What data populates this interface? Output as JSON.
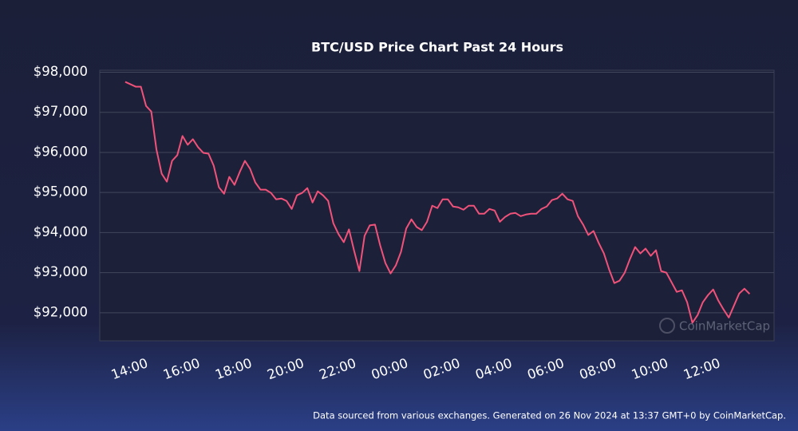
{
  "chart_data": {
    "type": "line",
    "title": "BTC/USD Price Chart Past 24 Hours",
    "watermark": "CoinMarketCap",
    "footer": "Data sourced from various exchanges. Generated on 26 Nov 2024 at 13:37 GMT+0 by CoinMarketCap.",
    "color": "#f0527a",
    "grid": true,
    "xlim": [
      12.62,
      38.54
    ],
    "ylim": [
      91300,
      98050
    ],
    "xticks": [
      {
        "value": 14,
        "label": "14:00"
      },
      {
        "value": 16,
        "label": "16:00"
      },
      {
        "value": 18,
        "label": "18:00"
      },
      {
        "value": 20,
        "label": "20:00"
      },
      {
        "value": 22,
        "label": "22:00"
      },
      {
        "value": 24,
        "label": "00:00"
      },
      {
        "value": 26,
        "label": "02:00"
      },
      {
        "value": 28,
        "label": "04:00"
      },
      {
        "value": 30,
        "label": "06:00"
      },
      {
        "value": 32,
        "label": "08:00"
      },
      {
        "value": 34,
        "label": "10:00"
      },
      {
        "value": 36,
        "label": "12:00"
      }
    ],
    "yticks": [
      {
        "value": 92000,
        "label": "$92,000"
      },
      {
        "value": 93000,
        "label": "$93,000"
      },
      {
        "value": 94000,
        "label": "$94,000"
      },
      {
        "value": 95000,
        "label": "$95,000"
      },
      {
        "value": 96000,
        "label": "$96,000"
      },
      {
        "value": 97000,
        "label": "$97,000"
      },
      {
        "value": 98000,
        "label": "$98,000"
      }
    ],
    "x": [
      13.6,
      13.8,
      14.0,
      14.2,
      14.4,
      14.6,
      14.8,
      15.0,
      15.2,
      15.4,
      15.6,
      15.8,
      16.0,
      16.2,
      16.4,
      16.6,
      16.8,
      17.0,
      17.2,
      17.4,
      17.6,
      17.8,
      18.0,
      18.2,
      18.4,
      18.6,
      18.8,
      19.0,
      19.2,
      19.4,
      19.6,
      19.8,
      20.0,
      20.2,
      20.4,
      20.6,
      20.8,
      21.0,
      21.2,
      21.4,
      21.6,
      21.8,
      22.0,
      22.2,
      22.4,
      22.6,
      22.8,
      23.0,
      23.2,
      23.4,
      23.6,
      23.8,
      24.0,
      24.2,
      24.4,
      24.6,
      24.8,
      25.0,
      25.2,
      25.4,
      25.6,
      25.8,
      26.0,
      26.2,
      26.4,
      26.6,
      26.8,
      27.0,
      27.2,
      27.4,
      27.6,
      27.8,
      28.0,
      28.2,
      28.4,
      28.6,
      28.8,
      29.0,
      29.2,
      29.4,
      29.6,
      29.8,
      30.0,
      30.2,
      30.4,
      30.6,
      30.8,
      31.0,
      31.2,
      31.4,
      31.6,
      31.8,
      32.0,
      32.2,
      32.4,
      32.6,
      32.8,
      33.0,
      33.2,
      33.4,
      33.6,
      33.8,
      34.0,
      34.2,
      34.4,
      34.6,
      34.8,
      35.0,
      35.2,
      35.4,
      35.6,
      35.8,
      36.0,
      36.2,
      36.4,
      36.6,
      36.8,
      37.0,
      37.2,
      37.4,
      37.6
    ],
    "values": [
      97760,
      97700,
      97640,
      97640,
      97160,
      97020,
      96070,
      95470,
      95270,
      95790,
      95930,
      96410,
      96190,
      96330,
      96130,
      95990,
      95970,
      95670,
      95130,
      94970,
      95390,
      95190,
      95510,
      95790,
      95590,
      95250,
      95070,
      95070,
      94990,
      94830,
      94850,
      94790,
      94590,
      94930,
      94990,
      95110,
      94750,
      95030,
      94930,
      94790,
      94230,
      93960,
      93760,
      94080,
      93540,
      93040,
      93920,
      94180,
      94200,
      93680,
      93240,
      92980,
      93180,
      93520,
      94100,
      94330,
      94140,
      94060,
      94270,
      94670,
      94610,
      94830,
      94830,
      94650,
      94630,
      94570,
      94670,
      94670,
      94470,
      94470,
      94590,
      94550,
      94270,
      94390,
      94470,
      94490,
      94410,
      94450,
      94470,
      94470,
      94590,
      94650,
      94810,
      94850,
      94970,
      94830,
      94790,
      94410,
      94200,
      93940,
      94040,
      93740,
      93480,
      93080,
      92740,
      92800,
      93000,
      93340,
      93640,
      93480,
      93600,
      93420,
      93560,
      93040,
      93000,
      92760,
      92520,
      92560,
      92260,
      91750,
      91940,
      92260,
      92440,
      92580,
      92300,
      92080,
      91880,
      92180,
      92480,
      92600,
      92470
    ]
  }
}
